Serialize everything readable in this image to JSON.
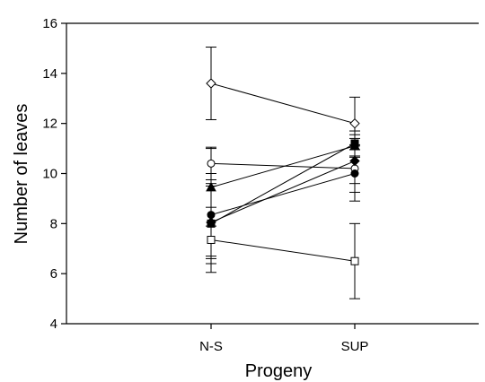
{
  "chart_data": {
    "type": "line",
    "title": "",
    "xlabel": "Progeny",
    "ylabel": "Number of leaves",
    "categories": [
      "N-S",
      "SUP"
    ],
    "ylim": [
      4,
      16
    ],
    "yticks": [
      4,
      6,
      8,
      10,
      12,
      14,
      16
    ],
    "grid": false,
    "legend": "none",
    "series": [
      {
        "marker": "open-diamond",
        "values": [
          13.6,
          12.0
        ],
        "errors": [
          1.45,
          1.05
        ]
      },
      {
        "marker": "open-circle",
        "values": [
          10.4,
          10.2
        ],
        "errors": [
          0.65,
          0.95
        ]
      },
      {
        "marker": "filled-triangle",
        "values": [
          9.45,
          11.1
        ],
        "errors": [
          1.55,
          0.45
        ]
      },
      {
        "marker": "filled-circle",
        "values": [
          8.35,
          10.0
        ],
        "errors": [
          1.65,
          1.1
        ]
      },
      {
        "marker": "filled-diamond",
        "values": [
          8.05,
          10.5
        ],
        "errors": [
          1.45,
          0.9
        ]
      },
      {
        "marker": "filled-square",
        "values": [
          8.0,
          11.2
        ],
        "errors": [
          1.6,
          0.5
        ]
      },
      {
        "marker": "open-square",
        "values": [
          7.35,
          6.5
        ],
        "errors": [
          1.3,
          1.5
        ]
      }
    ]
  }
}
